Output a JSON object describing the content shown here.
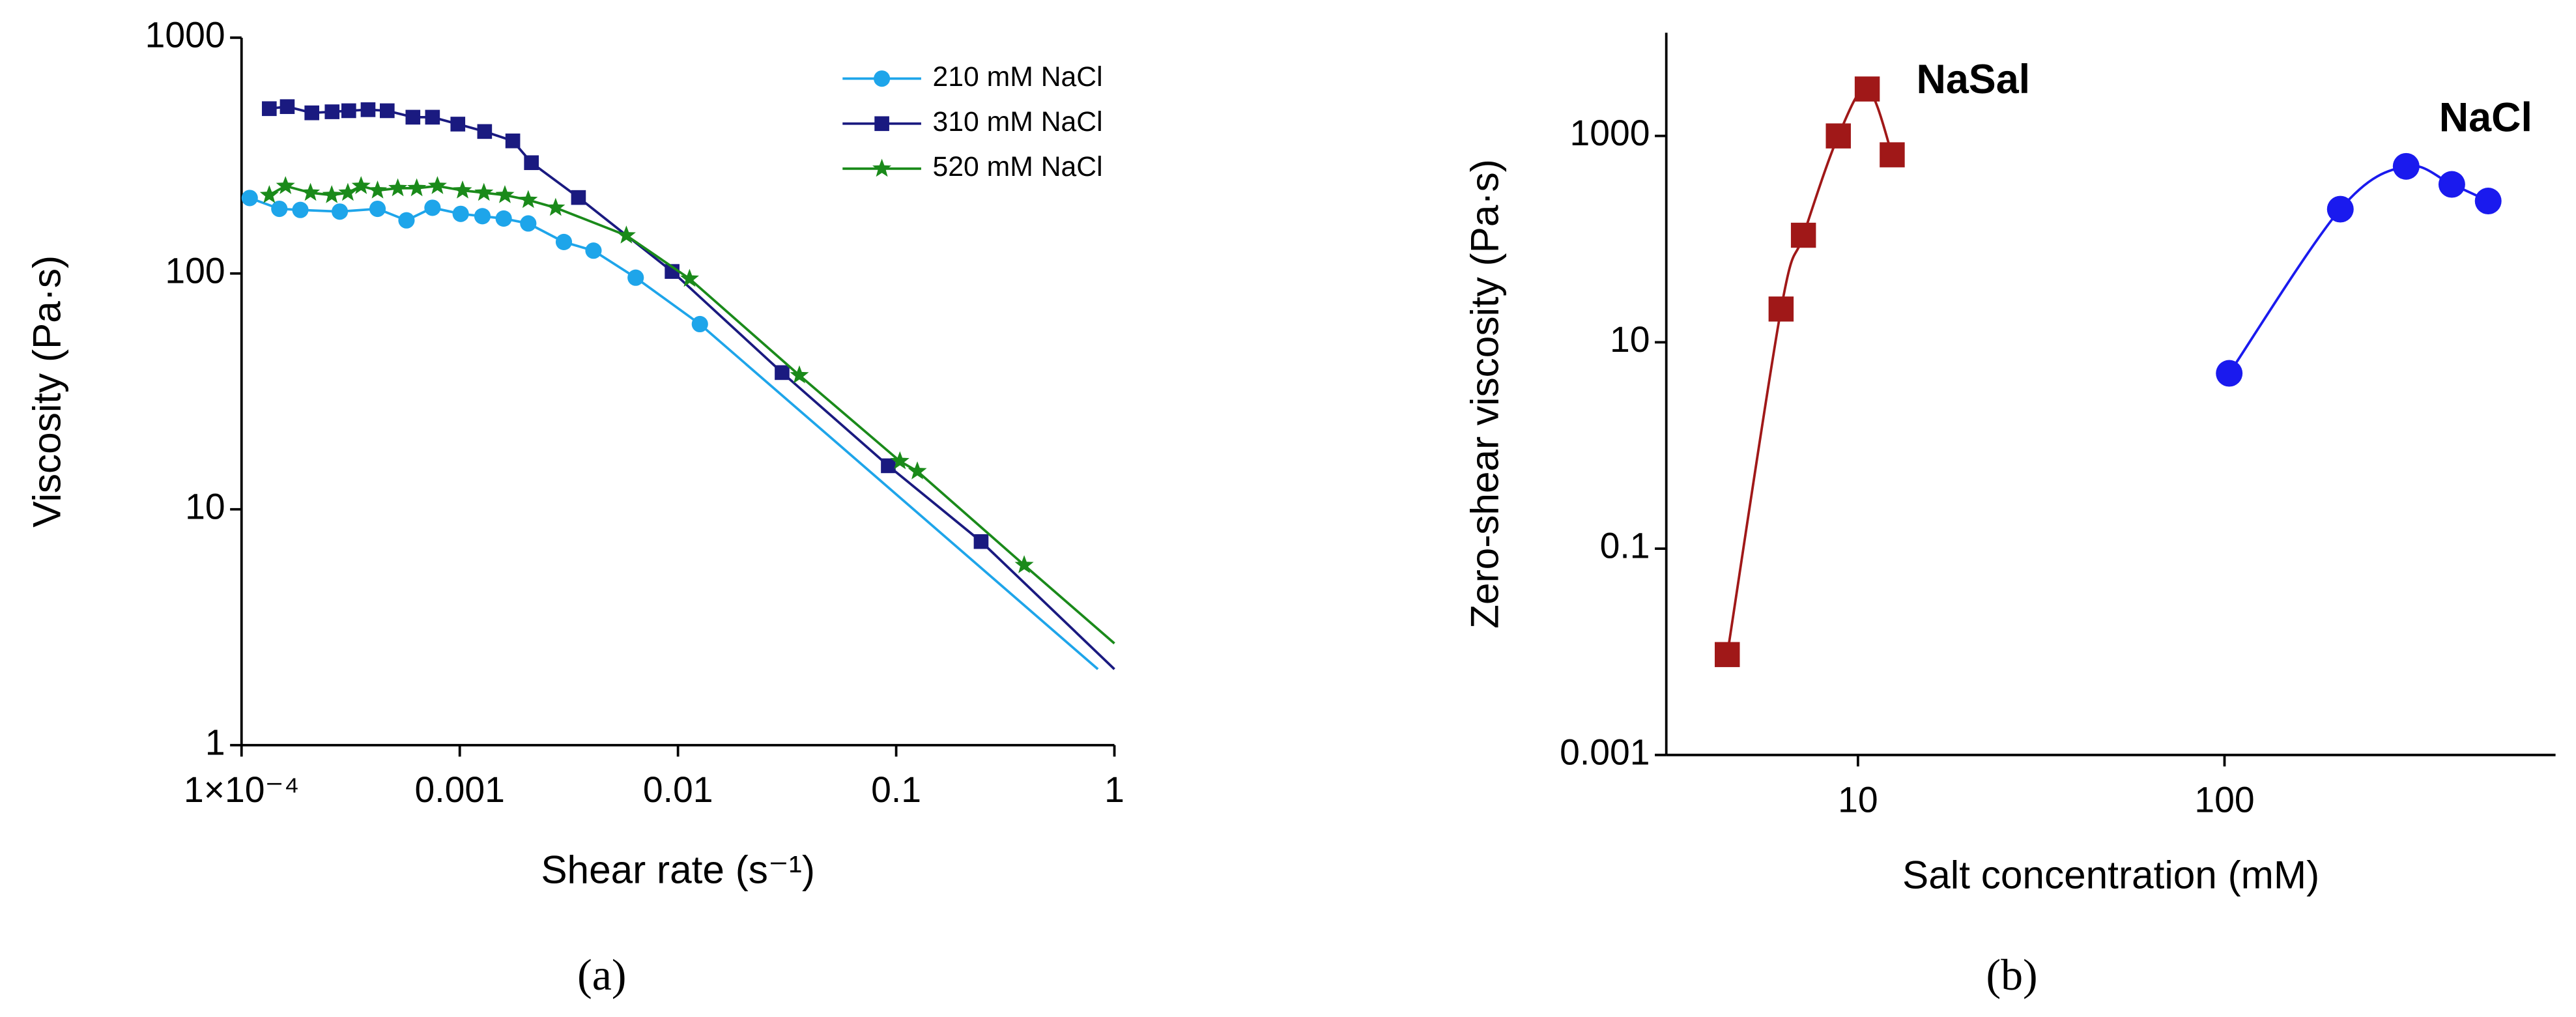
{
  "chart_data": [
    {
      "type": "line",
      "xlabel": "Shear rate (s⁻¹)",
      "ylabel": "Viscosity (Pa·s)",
      "caption": "(a)",
      "xscale": "log",
      "yscale": "log",
      "xlim": [
        0.0001,
        1
      ],
      "ylim": [
        1,
        1000
      ],
      "xticks": [
        {
          "value": 0.0001,
          "label": "1×10⁻⁴"
        },
        0.001,
        0.01,
        0.1,
        1
      ],
      "yticks": [
        1,
        10,
        100,
        1000
      ],
      "legend": "upper right",
      "series": [
        {
          "name": "210 mM NaCl",
          "color": "#1ea5ea",
          "marker": "circle",
          "x": [
            0.000109,
            0.000149,
            0.000186,
            0.000282,
            0.00042,
            0.00057,
            0.00075,
            0.00101,
            0.00127,
            0.00159,
            0.00206,
            0.003,
            0.0041,
            0.0064,
            0.0126
          ],
          "values": [
            209,
            188,
            186,
            183,
            188,
            168,
            190,
            179,
            175,
            171,
            163,
            136,
            125,
            96,
            61
          ],
          "fit_end": {
            "x": 0.84,
            "value": 2.1
          }
        },
        {
          "name": "310 mM NaCl",
          "color": "#1a1a80",
          "marker": "square",
          "x": [
            0.000134,
            0.000162,
            0.00021,
            0.00026,
            0.00031,
            0.00038,
            0.000465,
            0.00061,
            0.00075,
            0.00098,
            0.0013,
            0.00175,
            0.00213,
            0.0035,
            0.0094,
            0.03,
            0.092,
            0.245
          ],
          "values": [
            500,
            510,
            480,
            485,
            490,
            495,
            490,
            460,
            460,
            430,
            400,
            365,
            295,
            210,
            102,
            38,
            15.3,
            7.3
          ],
          "fit_end": {
            "x": 1,
            "value": 2.1
          }
        },
        {
          "name": "520 mM NaCl",
          "color": "#1a8a1a",
          "marker": "star",
          "x": [
            0.000134,
            0.000159,
            0.000207,
            0.000259,
            0.000307,
            0.000353,
            0.00042,
            0.00052,
            0.000635,
            0.00079,
            0.00103,
            0.00129,
            0.00161,
            0.00206,
            0.00275,
            0.0058,
            0.0113,
            0.036,
            0.104,
            0.125,
            0.386
          ],
          "values": [
            215,
            235,
            220,
            215,
            220,
            235,
            225,
            230,
            230,
            235,
            225,
            220,
            215,
            205,
            190,
            145,
            95,
            37,
            16,
            14.5,
            5.8
          ],
          "fit_end": {
            "x": 1,
            "value": 2.7
          }
        }
      ]
    },
    {
      "type": "line",
      "xlabel": "Salt concentration (mM)",
      "ylabel": "Zero-shear viscosity (Pa·s)",
      "caption": "(b)",
      "xscale": "log",
      "yscale": "log",
      "xlim": [
        3,
        800
      ],
      "ylim": [
        0.001,
        10000
      ],
      "xticks": [
        10,
        100
      ],
      "yticks": [
        0.001,
        0.1,
        10,
        1000
      ],
      "smooth": true,
      "series": [
        {
          "name": "NaSal",
          "color": "#a01818",
          "marker": "square",
          "x": [
            4.4,
            6.17,
            7.1,
            8.84,
            10.6,
            12.4
          ],
          "values": [
            0.0094,
            21,
            109,
            1000,
            2850,
            656
          ]
        },
        {
          "name": "NaCl",
          "color": "#1a1aee",
          "marker": "circle",
          "x": [
            103,
            207,
            313,
            417,
            524
          ],
          "values": [
            5.0,
            195,
            507,
            339,
            234
          ]
        }
      ]
    }
  ]
}
